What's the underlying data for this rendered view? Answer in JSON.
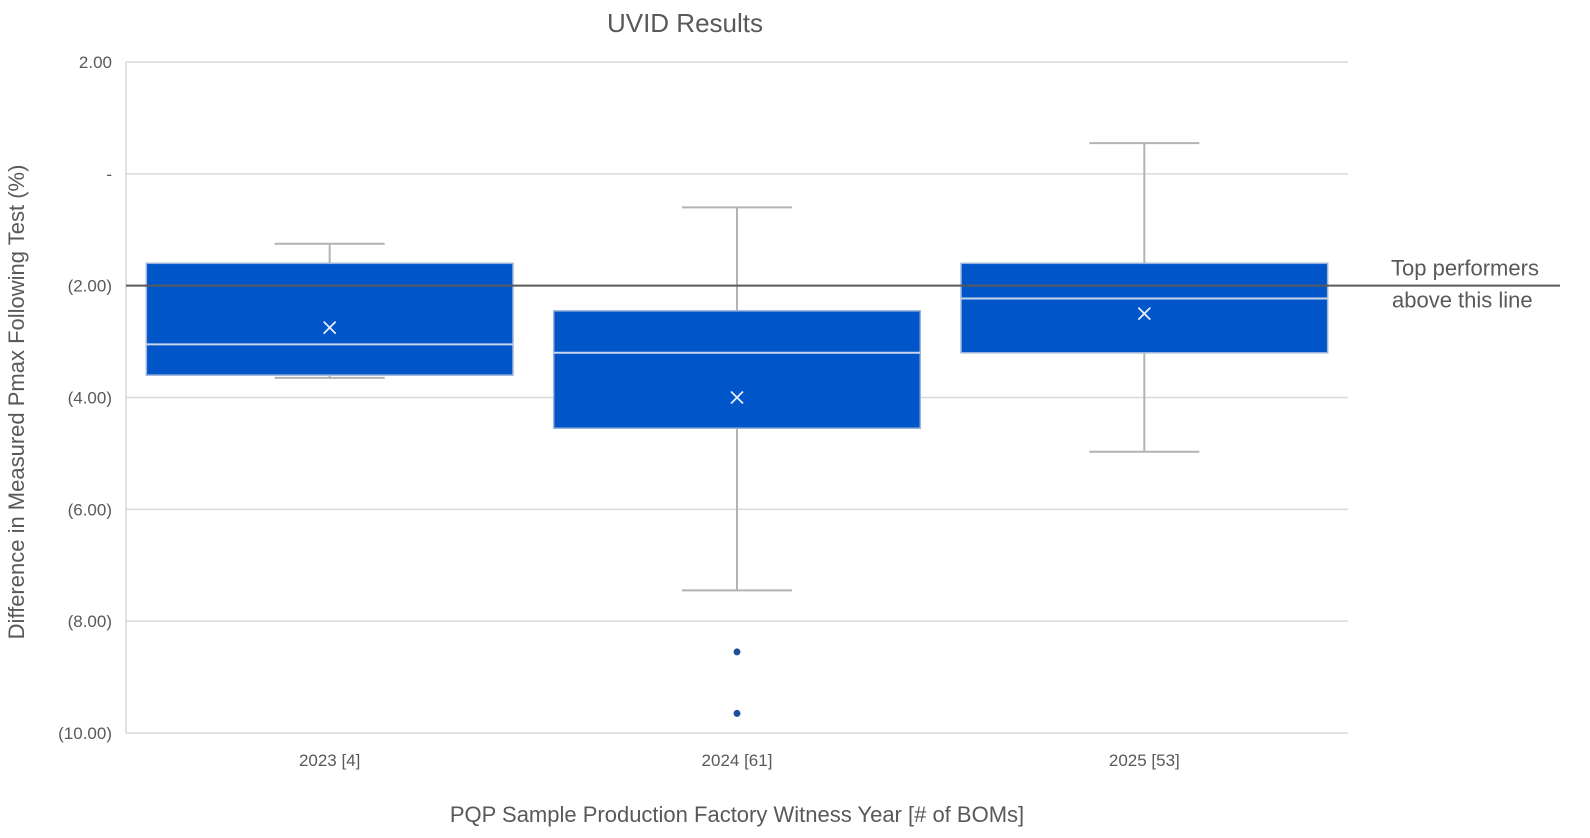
{
  "chart_data": {
    "type": "box",
    "title": "UVID Results",
    "xlabel": "PQP Sample Production Factory Witness Year [# of BOMs]",
    "ylabel": "Difference in Measured Pmax Following Test (%)",
    "ylim": [
      -10,
      2
    ],
    "yticks": [
      {
        "value": 2,
        "label": "2.00"
      },
      {
        "value": 0,
        "label": "-"
      },
      {
        "value": -2,
        "label": "(2.00)"
      },
      {
        "value": -4,
        "label": "(4.00)"
      },
      {
        "value": -6,
        "label": "(6.00)"
      },
      {
        "value": -8,
        "label": "(8.00)"
      },
      {
        "value": -10,
        "label": "(10.00)"
      }
    ],
    "grid": true,
    "categories": [
      "2023 [4]",
      "2024 [61]",
      "2025 [53]"
    ],
    "boxes": [
      {
        "category": "2023 [4]",
        "whisker_low": -3.65,
        "q1": -3.6,
        "median": -3.05,
        "q3": -1.6,
        "whisker_high": -1.25,
        "mean": -2.75,
        "outliers": []
      },
      {
        "category": "2024 [61]",
        "whisker_low": -7.45,
        "q1": -4.55,
        "median": -3.2,
        "q3": -2.45,
        "whisker_high": -0.6,
        "mean": -4.0,
        "outliers": [
          -8.55,
          -9.65
        ]
      },
      {
        "category": "2025 [53]",
        "whisker_low": -4.97,
        "q1": -3.2,
        "median": -2.23,
        "q3": -1.6,
        "whisker_high": 0.55,
        "mean": -2.5,
        "outliers": []
      }
    ],
    "reference_line": {
      "value": -2,
      "label_line1": "Top performers",
      "label_line2": "above this line"
    },
    "colors": {
      "box_fill": "#0055c8",
      "box_edge": "#9bb4d8",
      "whisker": "#b3b3b3",
      "median": "#c9d6ea",
      "mean_marker": "#e6edf8",
      "outlier": "#1f4e9c",
      "grid": "#d9d9d9",
      "reference_line": "#595959",
      "text": "#595959"
    }
  }
}
